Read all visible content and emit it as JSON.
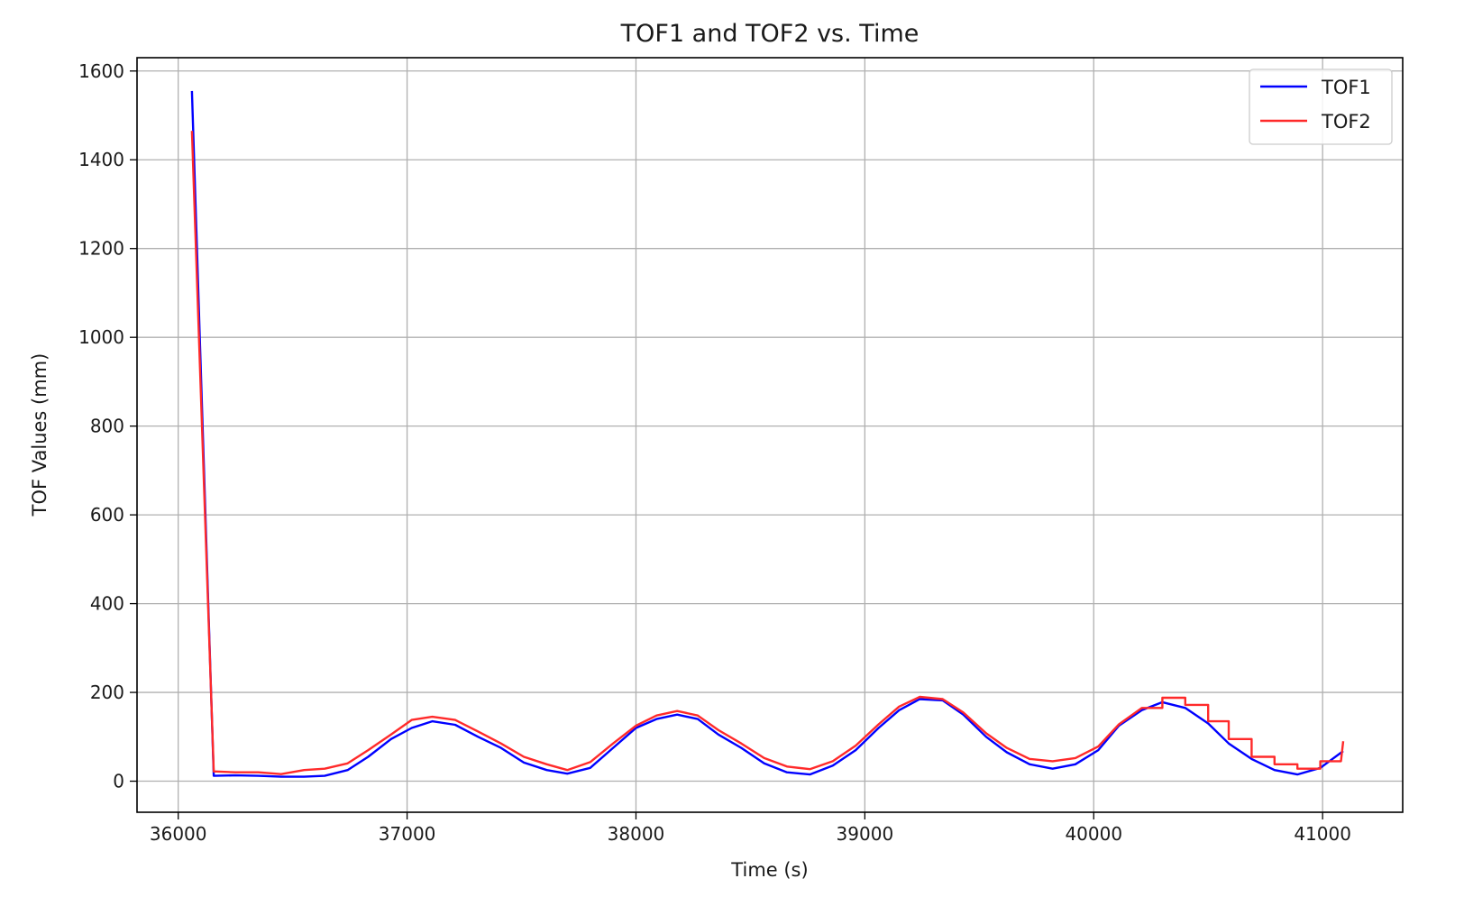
{
  "chart_data": {
    "type": "line",
    "title": "TOF1 and TOF2 vs. Time",
    "xlabel": "Time (s)",
    "ylabel": "TOF Values (mm)",
    "xlim": [
      35820,
      41350
    ],
    "ylim": [
      -70,
      1630
    ],
    "xticks": [
      36000,
      37000,
      38000,
      39000,
      40000,
      41000
    ],
    "xtick_labels": [
      "36000",
      "37000",
      "38000",
      "39000",
      "40000",
      "41000"
    ],
    "yticks": [
      0,
      200,
      400,
      600,
      800,
      1000,
      1200,
      1400,
      1600
    ],
    "ytick_labels": [
      "0",
      "200",
      "400",
      "600",
      "800",
      "1000",
      "1200",
      "1400",
      "1600"
    ],
    "grid": true,
    "legend_position": "top-right",
    "series": [
      {
        "name": "TOF1",
        "color": "#0000ff",
        "x": [
          36060,
          36155,
          36250,
          36350,
          36450,
          36550,
          36640,
          36740,
          36830,
          36930,
          37020,
          37110,
          37210,
          37310,
          37410,
          37510,
          37610,
          37700,
          37800,
          37900,
          38000,
          38090,
          38180,
          38270,
          38360,
          38460,
          38560,
          38660,
          38760,
          38860,
          38960,
          39060,
          39150,
          39240,
          39340,
          39430,
          39530,
          39620,
          39720,
          39820,
          39920,
          40020,
          40110,
          40210,
          40300,
          40400,
          40500,
          40590,
          40690,
          40790,
          40890,
          40990,
          41090
        ],
        "y": [
          1555,
          12,
          13,
          12,
          10,
          10,
          12,
          25,
          55,
          95,
          120,
          135,
          127,
          100,
          75,
          42,
          25,
          17,
          30,
          75,
          120,
          140,
          150,
          140,
          105,
          75,
          40,
          20,
          15,
          35,
          70,
          120,
          160,
          185,
          182,
          150,
          100,
          65,
          38,
          28,
          38,
          70,
          125,
          160,
          178,
          165,
          130,
          85,
          50,
          25,
          15,
          30,
          68
        ]
      },
      {
        "name": "TOF2",
        "color": "#ff2a2a",
        "x": [
          36060,
          36155,
          36250,
          36350,
          36450,
          36550,
          36640,
          36740,
          36830,
          36930,
          37020,
          37110,
          37210,
          37310,
          37410,
          37510,
          37610,
          37700,
          37800,
          37900,
          38000,
          38090,
          38180,
          38270,
          38360,
          38460,
          38560,
          38660,
          38760,
          38860,
          38960,
          39060,
          39150,
          39240,
          39340,
          39430,
          39530,
          39620,
          39720,
          39820,
          39920,
          40020,
          40110,
          40210,
          40300,
          40300,
          40400,
          40400,
          40500,
          40500,
          40590,
          40590,
          40690,
          40690,
          40790,
          40790,
          40890,
          40890,
          40990,
          40990,
          41080,
          41090
        ],
        "y": [
          1465,
          22,
          20,
          20,
          16,
          25,
          28,
          40,
          70,
          105,
          138,
          145,
          138,
          112,
          85,
          55,
          38,
          25,
          43,
          85,
          125,
          148,
          158,
          148,
          115,
          85,
          52,
          33,
          27,
          45,
          80,
          128,
          168,
          190,
          185,
          155,
          108,
          75,
          50,
          45,
          52,
          78,
          128,
          165,
          165,
          188,
          188,
          172,
          172,
          135,
          135,
          95,
          95,
          55,
          55,
          38,
          38,
          28,
          28,
          45,
          45,
          90
        ]
      }
    ]
  }
}
